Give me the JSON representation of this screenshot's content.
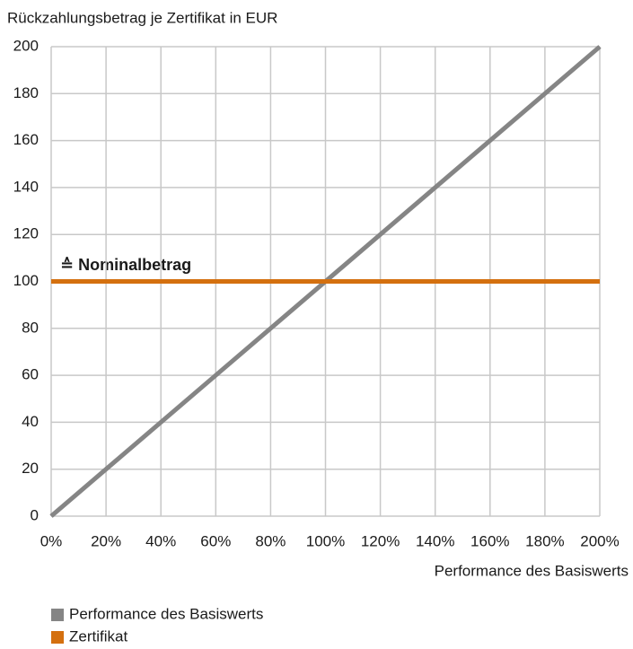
{
  "chart_data": {
    "type": "line",
    "y_axis_label": "Rückzahlungsbetrag je Zertifikat in EUR",
    "x_axis_label": "Performance des Basiswerts",
    "annotation": "≙ Nominalbetrag",
    "x": [
      0,
      200
    ],
    "series": [
      {
        "name": "Performance des Basiswerts",
        "color": "#858585",
        "values": [
          0,
          200
        ]
      },
      {
        "name": "Zertifikat",
        "color": "#d4700f",
        "values": [
          100,
          100
        ]
      }
    ],
    "xlim": [
      0,
      200
    ],
    "xticks": [
      {
        "value": 0,
        "label": "0%"
      },
      {
        "value": 20,
        "label": "20%"
      },
      {
        "value": 40,
        "label": "40%"
      },
      {
        "value": 60,
        "label": "60%"
      },
      {
        "value": 80,
        "label": "80%"
      },
      {
        "value": 100,
        "label": "100%"
      },
      {
        "value": 120,
        "label": "120%"
      },
      {
        "value": 140,
        "label": "140%"
      },
      {
        "value": 160,
        "label": "160%"
      },
      {
        "value": 180,
        "label": "180%"
      },
      {
        "value": 200,
        "label": "200%"
      }
    ],
    "ylim": [
      0,
      200
    ],
    "yticks": [
      0,
      20,
      40,
      60,
      80,
      100,
      120,
      140,
      160,
      180,
      200
    ],
    "grid": true
  }
}
